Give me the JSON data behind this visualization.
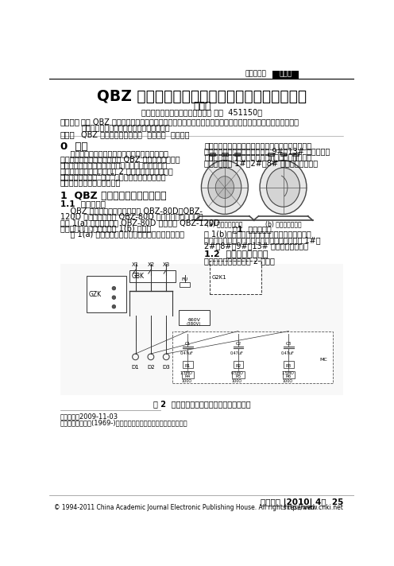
{
  "title": "QBZ 系列真空电磁起动器的线路改接及故障分析",
  "author": "陈玉安",
  "affiliation": "（河南省某炭高级技工学校，河南 新郑  451150）",
  "header_left": "中低压电器",
  "header_right": "供配电",
  "abstract_label": "【摘要】",
  "abstract_text1": "介绍 QBZ 系列真空电磁起动器在某国煎矿实际应用时的线路改接，分析了此系列起动器在该矿使用中",
  "abstract_text2": "出现的特殊和常见故障，并提出应对措施。",
  "keywords_label": "关键词",
  "keywords_text": "QBZ 系列真空电磁起动器  线路改接  故障分析",
  "section0_title": "0  引言",
  "section0_body1": "    河南省禹州市中锋集团枣园煎矿井下广区使用着",
  "section0_body2": "淮南万泰电子有限公司生产的 QBZ 系列真空电磁起动",
  "section0_body3": "器。在具体应用中，根据实际情况对部分线路进行了",
  "section0_body4": "改接。另外，该矿还出现了 2 次按起动器停止按鈕造",
  "section0_body5": "成慎电开关跳闸的“奇怪”现象，下面对线路改接和",
  "section0_body6": "起动器故障进行分析和说明。",
  "section1_title": "1  QBZ 系列真空电磁起动器简介",
  "section1_1_title": "1.1  起动器外型",
  "section1_1_body1": "    QBZ 系列真空电磁起动器包含 QBZ-80D、QBZ-",
  "section1_1_body2": "120D 等，其中，部分 QBZ-80D 真空电磁起动器的外型",
  "section1_1_body3": "如图 1(a) 所示。前部分 QBZ-80D 和全部的 QBZ-120D",
  "section1_1_body4": "真空电磁起动器的外型如图 1(b) 所示。",
  "section1_1_body5": "    图 1(a) 所示起动器的主腔上方为电罆引入接线箱，",
  "right_text1": "左侧为电罆引出接线箱。电罆引人接线箱内有三相电",
  "right_text2": "源侧引人电罆接线柱和控制线的 9#、13# 及地线的接",
  "right_text3": "线柱；电罆引出接线箱内有三相负荷侧引出电罆接线",
  "right_text4": "柱和控制线的 1#、2#、8# 及地线的接线柱。",
  "fig1_caption": "图1  起动器外型",
  "fig1a_label": "(a) 前腔接线起动器",
  "fig1b_label": "(b) 一体接线起动器",
  "right_text5": "图 1(b)所示的起动器只有一个电罆引人、引出接",
  "right_text6": "线箱，箱内有引人、引出电罆接线柱和控制线的 1#、",
  "right_text7": "2#、8#、9#、13# 及地线的接线柱。",
  "section1_2_title": "1.2  起动器电气原理图",
  "section1_2_text": "起动器电气原理图如图 2 所示。",
  "fig2_caption": "图 2  矿用隔爆型真空电磁起动器电气原理图",
  "footnote1": "收稿日期：2009-11-03",
  "footnote2": "作者简介：陈玉安(1969-)，高级讲师，从事电气方面教科研工作。",
  "footer_journal": "电工技术 |2010| 4期  25",
  "footer_copyright": "© 1994-2011 China Academic Journal Electronic Publishing House. All rights reserved.",
  "footer_url": "http://www.cnki.net",
  "bg_color": "#ffffff"
}
